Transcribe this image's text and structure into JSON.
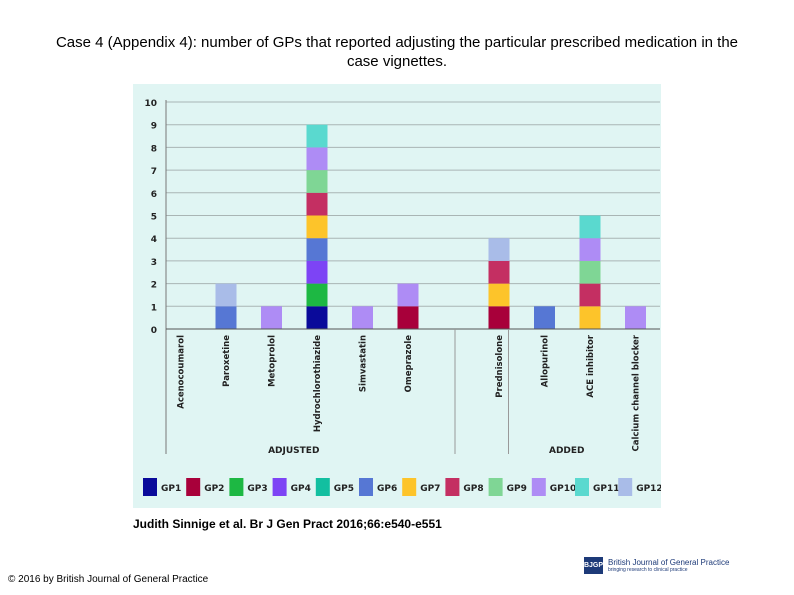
{
  "title": "Case 4 (Appendix 4): number of GPs that reported adjusting the particular prescribed medication in the case vignettes.",
  "caption": "Judith Sinnige et al. Br J Gen Pract 2016;66:e540-e551",
  "copyright": "© 2016 by British Journal of General Practice",
  "logo": {
    "mark": "BJGP",
    "name": "British Journal of General Practice",
    "tagline": "bringing research to clinical practice"
  },
  "chart_data": {
    "type": "bar",
    "stacked": true,
    "title": "",
    "xlabel": "",
    "ylabel": "",
    "ylim": [
      0,
      10
    ],
    "yticks": [
      0,
      1,
      2,
      3,
      4,
      5,
      6,
      7,
      8,
      9,
      10
    ],
    "grid": true,
    "background": "#e0f5f3",
    "legend_placement": "bottom",
    "groups": [
      {
        "label": "ADJUSTED",
        "categories": [
          "Acenocoumarol",
          "Paroxetine",
          "Metoprolol",
          "Hydrochlorothiazide",
          "Simvastatin",
          "Omeprazole"
        ]
      },
      {
        "label": "ADDED",
        "categories": [
          "Prednisolone",
          "Allopurinol",
          "ACE inhibitor",
          "Calcium channel blocker"
        ]
      }
    ],
    "series": [
      {
        "name": "GP1",
        "color": "#0a0a9a"
      },
      {
        "name": "GP2",
        "color": "#a8003a"
      },
      {
        "name": "GP3",
        "color": "#1db843"
      },
      {
        "name": "GP4",
        "color": "#7d44f5"
      },
      {
        "name": "GP5",
        "color": "#12bfa0"
      },
      {
        "name": "GP6",
        "color": "#5677d4"
      },
      {
        "name": "GP7",
        "color": "#fdc42a"
      },
      {
        "name": "GP8",
        "color": "#c42f62"
      },
      {
        "name": "GP9",
        "color": "#7fd695"
      },
      {
        "name": "GP10",
        "color": "#ae8cf5"
      },
      {
        "name": "GP11",
        "color": "#5ad9cf"
      },
      {
        "name": "GP12",
        "color": "#a9bce8"
      }
    ],
    "bars": {
      "Acenocoumarol": [],
      "Paroxetine": [
        "GP6",
        "GP12"
      ],
      "Metoprolol": [
        "GP10"
      ],
      "Hydrochlorothiazide": [
        "GP1",
        "GP3",
        "GP4",
        "GP6",
        "GP7",
        "GP8",
        "GP9",
        "GP10",
        "GP11"
      ],
      "Simvastatin": [
        "GP10"
      ],
      "Omeprazole": [
        "GP2",
        "GP10"
      ],
      "Prednisolone": [
        "GP2",
        "GP7",
        "GP8",
        "GP12"
      ],
      "Allopurinol": [
        "GP6"
      ],
      "ACE inhibitor": [
        "GP7",
        "GP8",
        "GP9",
        "GP10",
        "GP11"
      ],
      "Calcium channel blocker": [
        "GP10"
      ]
    }
  }
}
